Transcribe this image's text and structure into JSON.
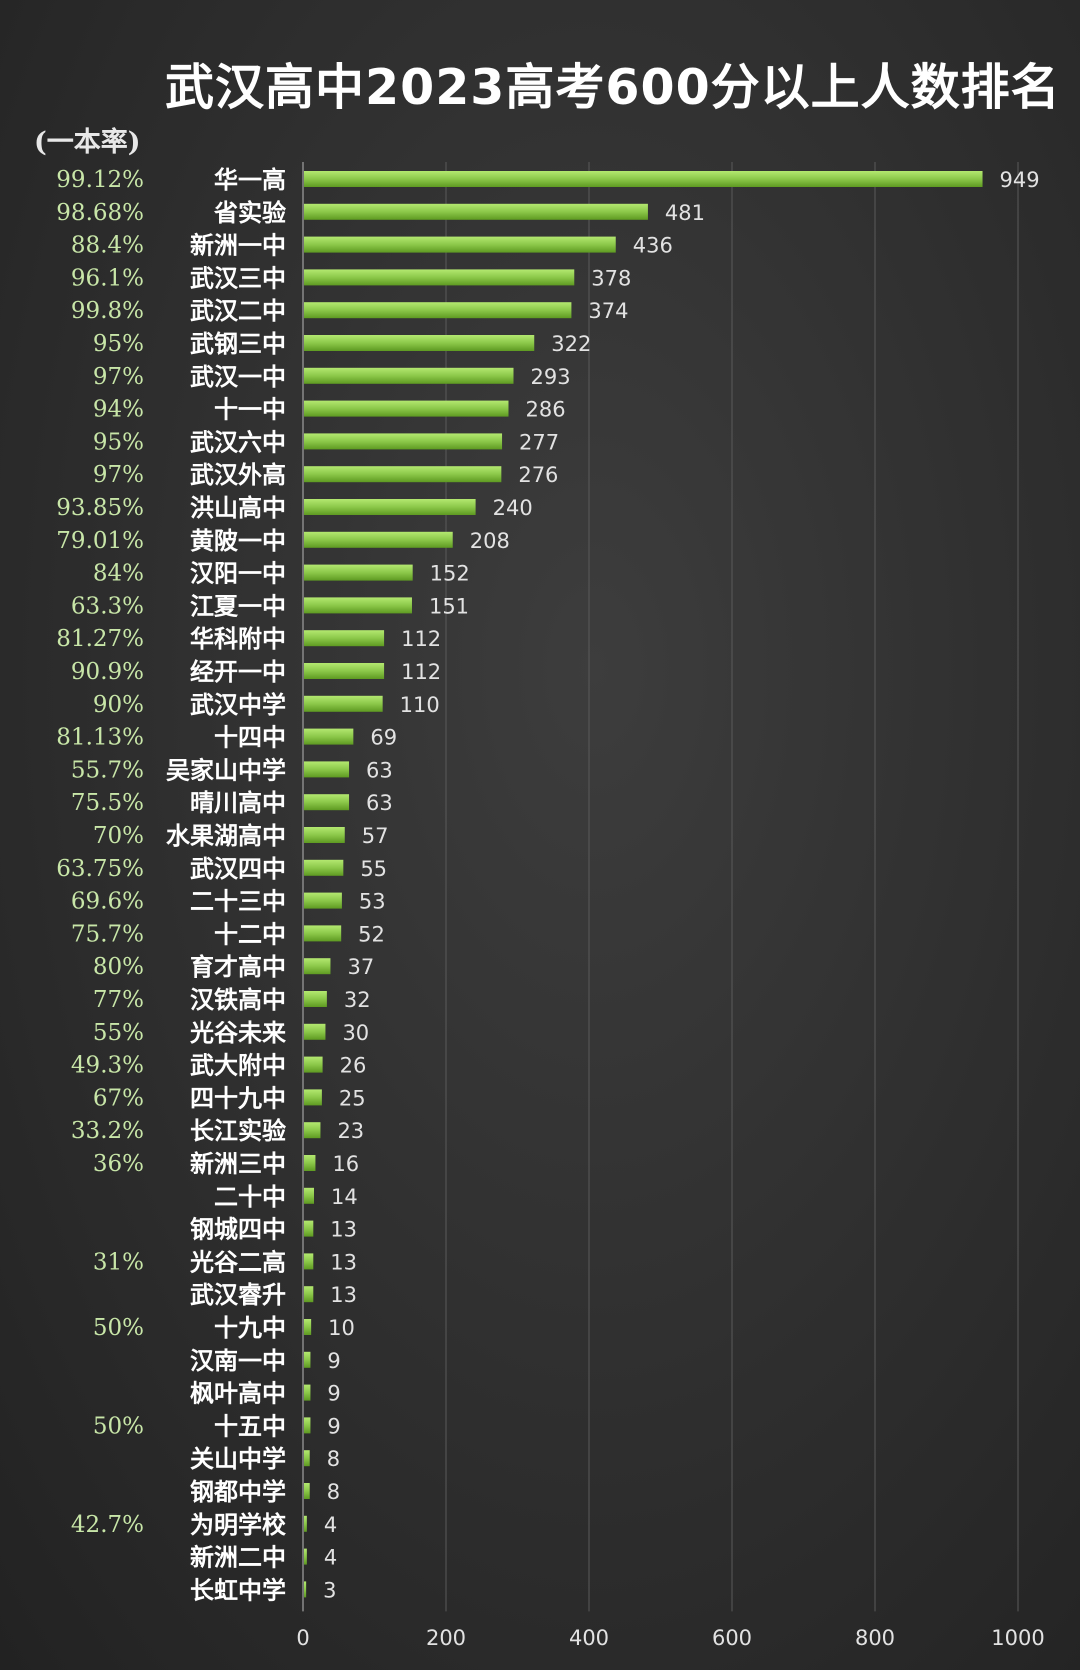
{
  "title": "武汉高中2023高考600分以上人数排名",
  "rate_header": "(一本率)",
  "colors": {
    "bar_dark": "#5f9a22",
    "bar_light": "#a9de62",
    "rate": "#c8e6a8",
    "grid": "#5a5a5a"
  },
  "chart_data": {
    "type": "bar",
    "orientation": "horizontal",
    "xlim": [
      0,
      1000
    ],
    "xticks": [
      "0",
      "200",
      "400",
      "600",
      "800",
      "1000"
    ],
    "grid": true,
    "categories": [
      "华一高",
      "省实验",
      "新洲一中",
      "武汉三中",
      "武汉二中",
      "武钢三中",
      "武汉一中",
      "十一中",
      "武汉六中",
      "武汉外高",
      "洪山高中",
      "黄陂一中",
      "汉阳一中",
      "江夏一中",
      "华科附中",
      "经开一中",
      "武汉中学",
      "十四中",
      "吴家山中学",
      "晴川高中",
      "水果湖高中",
      "武汉四中",
      "二十三中",
      "十二中",
      "育才高中",
      "汉铁高中",
      "光谷未来",
      "武大附中",
      "四十九中",
      "长江实验",
      "新洲三中",
      "二十中",
      "钢城四中",
      "光谷二高",
      "武汉睿升",
      "十九中",
      "汉南一中",
      "枫叶高中",
      "十五中",
      "关山中学",
      "钢都中学",
      "为明学校",
      "新洲二中",
      "长虹中学"
    ],
    "values": [
      949,
      481,
      436,
      378,
      374,
      322,
      293,
      286,
      277,
      276,
      240,
      208,
      152,
      151,
      112,
      112,
      110,
      69,
      63,
      63,
      57,
      55,
      53,
      52,
      37,
      32,
      30,
      26,
      25,
      23,
      16,
      14,
      13,
      13,
      13,
      10,
      9,
      9,
      9,
      8,
      8,
      4,
      4,
      3
    ],
    "rates": [
      "99.12%",
      "98.68%",
      "88.4%",
      "96.1%",
      "99.8%",
      "95%",
      "97%",
      "94%",
      "95%",
      "97%",
      "93.85%",
      "79.01%",
      "84%",
      "63.3%",
      "81.27%",
      "90.9%",
      "90%",
      "81.13%",
      "55.7%",
      "75.5%",
      "70%",
      "63.75%",
      "69.6%",
      "75.7%",
      "80%",
      "77%",
      "55%",
      "49.3%",
      "67%",
      "33.2%",
      "36%",
      "",
      "",
      "31%",
      "",
      "50%",
      "",
      "",
      "50%",
      "",
      "",
      "42.7%",
      "",
      ""
    ]
  }
}
